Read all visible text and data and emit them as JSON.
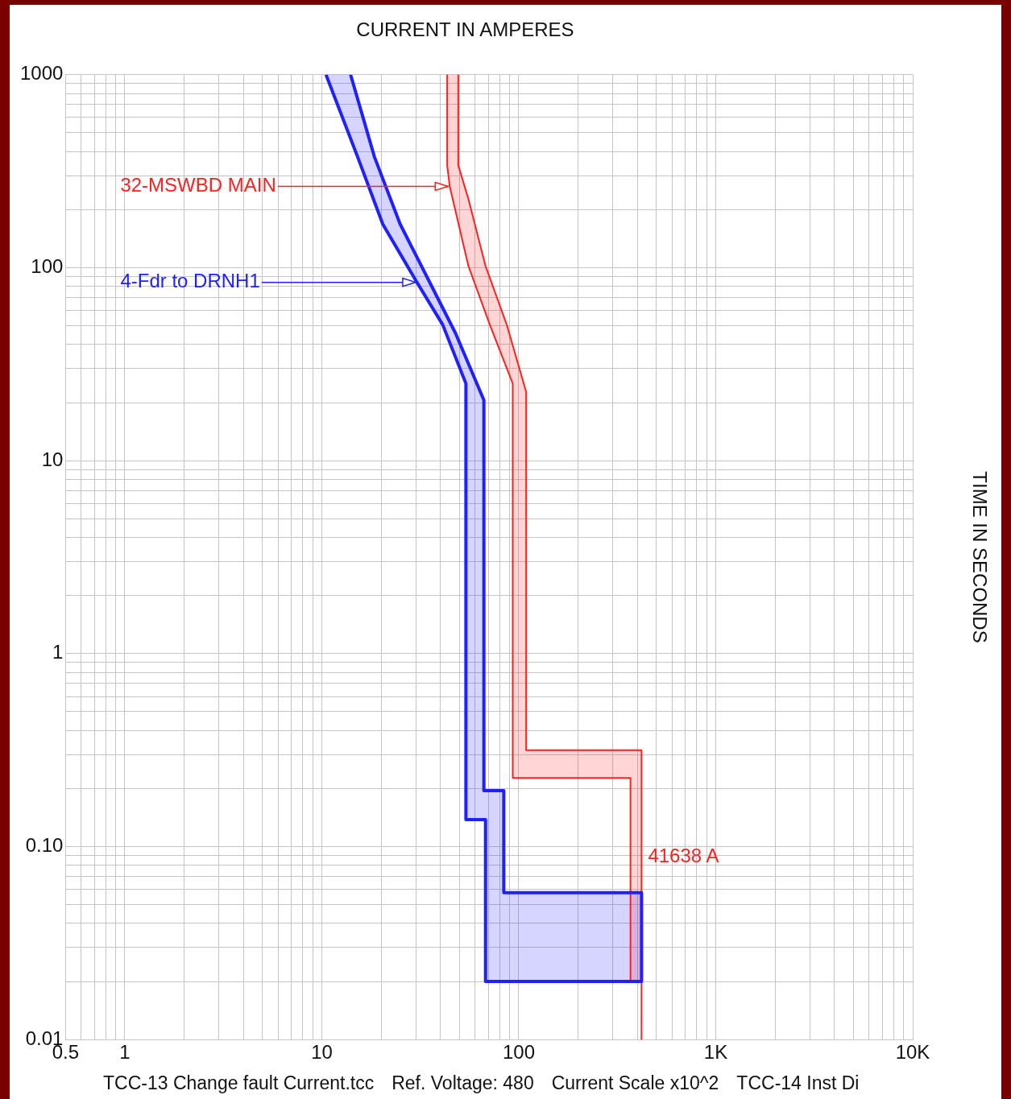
{
  "chart_data": {
    "type": "line",
    "xlabel": "CURRENT IN AMPERES",
    "ylabel": "TIME IN SECONDS",
    "log": "xy",
    "grid": true,
    "legend": false,
    "marker": "none",
    "xlim": [
      0.5,
      10000
    ],
    "xticks": [
      0.5,
      {
        "value": 0.6,
        "label": null
      },
      {
        "value": 0.7,
        "label": null
      },
      {
        "value": 0.8,
        "label": null
      },
      {
        "value": 0.9,
        "label": null
      },
      1,
      {
        "value": 2,
        "label": null
      },
      {
        "value": 3,
        "label": null
      },
      {
        "value": 4,
        "label": null
      },
      {
        "value": 5,
        "label": null
      },
      {
        "value": 6,
        "label": null
      },
      {
        "value": 7,
        "label": null
      },
      {
        "value": 8,
        "label": null
      },
      {
        "value": 9,
        "label": null
      },
      10,
      {
        "value": 20,
        "label": null
      },
      {
        "value": 30,
        "label": null
      },
      {
        "value": 40,
        "label": null
      },
      {
        "value": 50,
        "label": null
      },
      {
        "value": 60,
        "label": null
      },
      {
        "value": 70,
        "label": null
      },
      {
        "value": 80,
        "label": null
      },
      {
        "value": 90,
        "label": null
      },
      100,
      {
        "value": 200,
        "label": null
      },
      {
        "value": 300,
        "label": null
      },
      {
        "value": 400,
        "label": null
      },
      {
        "value": 500,
        "label": null
      },
      {
        "value": 600,
        "label": null
      },
      {
        "value": 700,
        "label": null
      },
      {
        "value": 800,
        "label": null
      },
      {
        "value": 900,
        "label": null
      },
      {
        "value": 1000,
        "label": "1K"
      },
      {
        "value": 2000,
        "label": null
      },
      {
        "value": 3000,
        "label": null
      },
      {
        "value": 4000,
        "label": null
      },
      {
        "value": 5000,
        "label": null
      },
      {
        "value": 6000,
        "label": null
      },
      {
        "value": 7000,
        "label": null
      },
      {
        "value": 8000,
        "label": null
      },
      {
        "value": 9000,
        "label": null
      },
      {
        "value": 10000,
        "label": "10K"
      }
    ],
    "ylim": [
      0.01,
      1000
    ],
    "yticks": [
      0.01,
      {
        "value": 0.02,
        "label": null
      },
      {
        "value": 0.03,
        "label": null
      },
      {
        "value": 0.04,
        "label": null
      },
      {
        "value": 0.05,
        "label": null
      },
      {
        "value": 0.06,
        "label": null
      },
      {
        "value": 0.07,
        "label": null
      },
      {
        "value": 0.08,
        "label": null
      },
      {
        "value": 0.09,
        "label": null
      },
      {
        "value": 0.1,
        "label": "0.10"
      },
      {
        "value": 0.2,
        "label": null
      },
      {
        "value": 0.3,
        "label": null
      },
      {
        "value": 0.4,
        "label": null
      },
      {
        "value": 0.5,
        "label": null
      },
      {
        "value": 0.6,
        "label": null
      },
      {
        "value": 0.7,
        "label": null
      },
      {
        "value": 0.8,
        "label": null
      },
      {
        "value": 0.9,
        "label": null
      },
      1,
      {
        "value": 2,
        "label": null
      },
      {
        "value": 3,
        "label": null
      },
      {
        "value": 4,
        "label": null
      },
      {
        "value": 5,
        "label": null
      },
      {
        "value": 6,
        "label": null
      },
      {
        "value": 7,
        "label": null
      },
      {
        "value": 8,
        "label": null
      },
      {
        "value": 9,
        "label": null
      },
      10,
      {
        "value": 20,
        "label": null
      },
      {
        "value": 30,
        "label": null
      },
      {
        "value": 40,
        "label": null
      },
      {
        "value": 50,
        "label": null
      },
      {
        "value": 60,
        "label": null
      },
      {
        "value": 70,
        "label": null
      },
      {
        "value": 80,
        "label": null
      },
      {
        "value": 90,
        "label": null
      },
      100,
      {
        "value": 200,
        "label": null
      },
      {
        "value": 300,
        "label": null
      },
      {
        "value": 400,
        "label": null
      },
      {
        "value": 500,
        "label": null
      },
      {
        "value": 600,
        "label": null
      },
      {
        "value": 700,
        "label": null
      },
      {
        "value": 800,
        "label": null
      },
      {
        "value": 900,
        "label": null
      },
      1000
    ],
    "series": [
      {
        "color": "#ff2020",
        "x": [
          43.3,
          43.3,
          44.6,
          55.5,
          71.3,
          93.2,
          93.2,
          369,
          369,
          420,
          420,
          420,
          109,
          109,
          86.9,
          67.8,
          55.5,
          49.3,
          49.3
        ],
        "values": [
          1000,
          339,
          264,
          102,
          50.6,
          25.1,
          0.227,
          0.227,
          0.02,
          0.02,
          0.01,
          0.316,
          0.316,
          22.7,
          50.6,
          102,
          227,
          339,
          1000
        ]
      },
      {
        "color": "#2020ff",
        "x": [
          10.5,
          15.2,
          20.4,
          30.5,
          41.1,
          53.9,
          53.9,
          67.8,
          67.8,
          420,
          420,
          83.9,
          83.9,
          66.5,
          66.5,
          47.7,
          35.4,
          25.0,
          18.5,
          14.0
        ],
        "values": [
          1000,
          375,
          168,
          83.5,
          50.6,
          25.1,
          0.138,
          0.138,
          0.02,
          0.02,
          0.0577,
          0.0577,
          0.195,
          0.195,
          20.6,
          45.8,
          83.5,
          168,
          375,
          1000
        ]
      }
    ],
    "annotations": [
      {
        "text": "32-MSWBD MAIN",
        "x": 44.6,
        "y": 264
      },
      {
        "text": "4-Fdr to DRNH1",
        "x": 30.5,
        "y": 84
      },
      {
        "text": "41638 A",
        "x": 420,
        "y": 0.088
      },
      "TCC-13 Change fault Current.tcc",
      "Ref. Voltage: 480",
      "Current Scale x10^2",
      "TCC-14 Inst Di"
    ]
  }
}
